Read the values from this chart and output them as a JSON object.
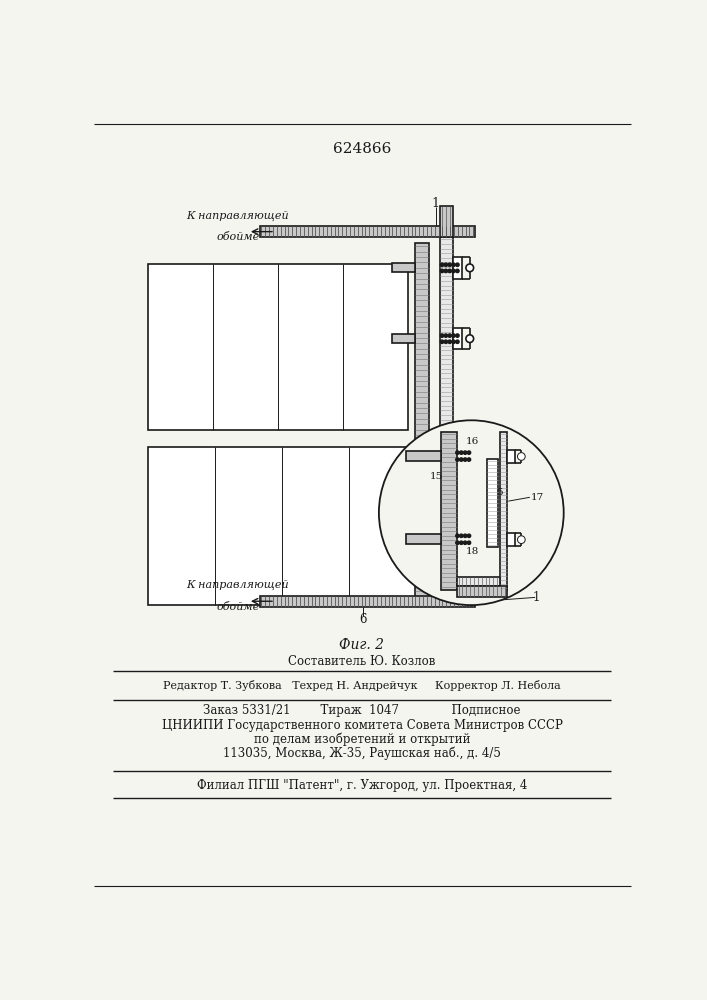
{
  "patent_number": "624866",
  "fig_label": "Фиг. 2",
  "staff_line1": "Составитель Ю. Козлов",
  "staff_line2": "Редактор Т. Зубкова   Техред Н. Андрейчук     Корректор Л. Небола",
  "order_line": "Заказ 5331/21        Тираж  1047              Подписное",
  "org_line1": "ЦНИИПИ Государственного комитета Совета Министров СССР",
  "org_line2": "по делам изобретений и открытий",
  "org_line3": "113035, Москва, Ж-35, Раушская наб., д. 4/5",
  "filial_line": "Филиал ПГШ \"Патент\", г. Ужгород, ул. Проектная, 4",
  "bg_color": "#f5f5f0",
  "line_color": "#1a1a1a",
  "fill_light": "#e8e8e8",
  "fill_mid": "#c8c8c8",
  "fill_dark": "#a0a0a0"
}
